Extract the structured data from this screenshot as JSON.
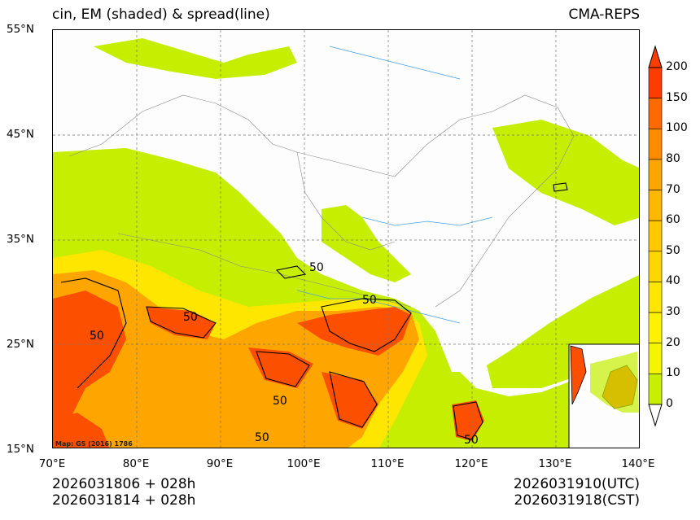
{
  "title_left": "cin, EM (shaded) & spread(line)",
  "title_right": "CMA-REPS",
  "lat_labels": [
    "55°N",
    "45°N",
    "35°N",
    "25°N",
    "15°N"
  ],
  "lon_labels": [
    "70°E",
    "80°E",
    "90°E",
    "100°E",
    "110°E",
    "120°E",
    "130°E",
    "140°E"
  ],
  "colorbar": {
    "levels": [
      "200",
      "150",
      "100",
      "80",
      "70",
      "60",
      "50",
      "40",
      "30",
      "20",
      "10",
      "0"
    ],
    "colors": [
      "#fd3d00",
      "#ff6a00",
      "#ff8c00",
      "#ffa500",
      "#ffb700",
      "#ffc800",
      "#ffd700",
      "#ffe600",
      "#fff200",
      "#f5f500",
      "#c8ee00",
      "#ffffff"
    ]
  },
  "contour_label": "50",
  "credit": "Map: GS (2016) 1786",
  "init_utc": "2026031806  +  028h",
  "init_cst": "2026031814  +  028h",
  "valid_utc": "2026031910(UTC)",
  "valid_cst": "2026031918(CST)"
}
